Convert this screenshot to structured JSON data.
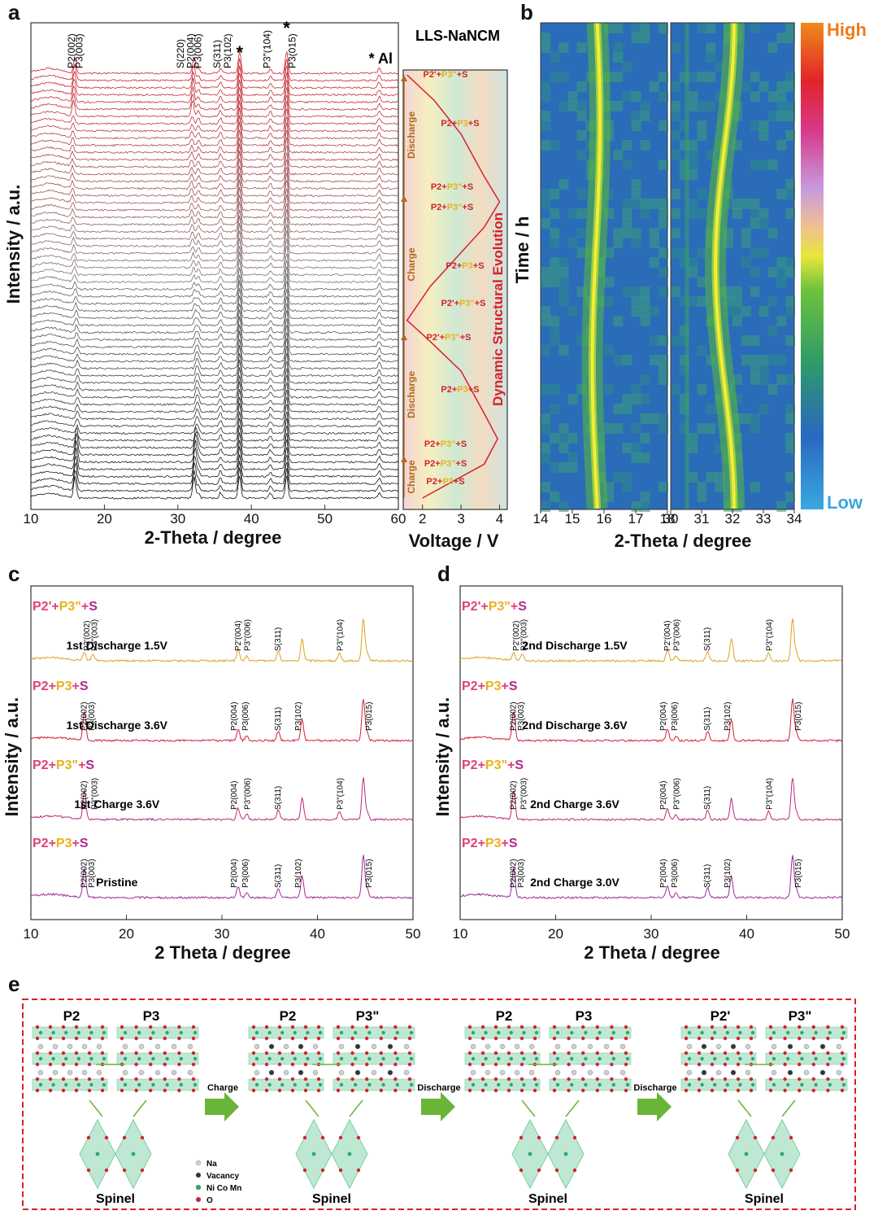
{
  "figure": {
    "panel_labels": {
      "a": "a",
      "b": "b",
      "c": "c",
      "d": "d",
      "e": "e"
    },
    "colors": {
      "pink": "#e0407a",
      "gold": "#e8b21a",
      "red": "#d8202a",
      "mag": "#b0288c",
      "gray": "#222222",
      "arrow_green": "#6ab43a",
      "legend_box": "#d8202a"
    }
  },
  "chart_data": [
    {
      "id": "a",
      "type": "line",
      "title": "LLS-NaNCM",
      "xlabel": "2-Theta / degree",
      "ylabel": "Intensity / a.u.",
      "xlim": [
        10,
        60
      ],
      "xticks": [
        "10",
        "20",
        "30",
        "40",
        "50",
        "60"
      ],
      "n_scans": 60,
      "peaks_deg": [
        16.0,
        32.2,
        32.8,
        35.8,
        38.4,
        42.6,
        44.8,
        57.4
      ],
      "peak_labels": [
        "P2(002)",
        "P3(003)",
        "S(220)",
        "P2(004)",
        "P3(006)",
        "S(311)",
        "P3(102)",
        "*",
        "P3\"(104)",
        "*",
        "P3(015)",
        "* Al"
      ],
      "side_panel": {
        "xlabel": "Voltage / V",
        "xticks": [
          "2",
          "3",
          "4"
        ],
        "xlim": [
          1.5,
          4.2
        ],
        "title": "Dynamic Structural Evolution",
        "stages": [
          "Charge",
          "Discharge",
          "Charge",
          "Discharge"
        ],
        "phases": [
          "P2+P3+S",
          "P2+P3\"+S",
          "P2+P3\"+S",
          "P2+P3+S",
          "P2'+P3\"+S",
          "P2'+P3\"+S",
          "P2+P3+S",
          "P2+P3\"+S",
          "P2+P3\"+S",
          "P2+P3+S",
          "P2'+P3\"+S"
        ],
        "voltage_profile": [
          [
            0,
            2.0
          ],
          [
            0.08,
            3.6
          ],
          [
            0.14,
            3.95
          ],
          [
            0.2,
            3.6
          ],
          [
            0.3,
            3.0
          ],
          [
            0.37,
            2.2
          ],
          [
            0.42,
            1.6
          ],
          [
            0.5,
            2.2
          ],
          [
            0.58,
            3.0
          ],
          [
            0.64,
            3.6
          ],
          [
            0.7,
            4.0
          ],
          [
            0.76,
            3.6
          ],
          [
            0.86,
            3.0
          ],
          [
            0.94,
            2.3
          ],
          [
            1.0,
            1.6
          ]
        ]
      }
    },
    {
      "id": "b",
      "type": "heatmap",
      "xlabel": "2-Theta / degree",
      "ylabel": "Time / h",
      "left_xlim": [
        14,
        18
      ],
      "left_xticks": [
        "14",
        "15",
        "16",
        "17",
        "18"
      ],
      "right_xlim": [
        30,
        34
      ],
      "right_xticks": [
        "30",
        "31",
        "32",
        "33",
        "34"
      ],
      "colorbar": {
        "high": "High",
        "low": "Low"
      }
    },
    {
      "id": "c",
      "type": "line",
      "xlabel": "2 Theta / degree",
      "ylabel": "Intensity / a.u.",
      "xlim": [
        10,
        50
      ],
      "xticks": [
        "10",
        "20",
        "30",
        "40",
        "50"
      ],
      "series": [
        {
          "name": "1st Discharge 1.5V",
          "phase": [
            "P2'",
            "P3\"",
            "S"
          ],
          "labels": [
            "P2'(002)",
            "P3\"(003)",
            "P2'(004)",
            "P3\"(006)",
            "S(311)",
            "P3\"(104)"
          ]
        },
        {
          "name": "1st Discharge 3.6V",
          "phase": [
            "P2",
            "P3",
            "S"
          ],
          "labels": [
            "P2(002)",
            "P3(003)",
            "P2(004)",
            "P3(006)",
            "S(311)",
            "P3(102)",
            "P3(015)"
          ]
        },
        {
          "name": "1st Charge 3.6V",
          "phase": [
            "P2",
            "P3\"",
            "S"
          ],
          "labels": [
            "P2(002)",
            "P3\"(003)",
            "P2(004)",
            "P3\"(006)",
            "S(311)",
            "P3\"(104)"
          ]
        },
        {
          "name": "Pristine",
          "phase": [
            "P2",
            "P3",
            "S"
          ],
          "labels": [
            "P2(002)",
            "P3(003)",
            "P2(004)",
            "P3(006)",
            "S(311)",
            "P3(102)",
            "P3(015)"
          ]
        }
      ]
    },
    {
      "id": "d",
      "type": "line",
      "xlabel": "2 Theta / degree",
      "ylabel": "Intensity / a.u.",
      "xlim": [
        10,
        50
      ],
      "xticks": [
        "10",
        "20",
        "30",
        "40",
        "50"
      ],
      "series": [
        {
          "name": "2nd Discharge 1.5V",
          "phase": [
            "P2'",
            "P3\"",
            "S"
          ],
          "labels": [
            "P2'(002)",
            "P3\"(003)",
            "P2'(004)",
            "P3\"(006)",
            "S(311)",
            "P3\"(104)"
          ]
        },
        {
          "name": "2nd Discharge 3.6V",
          "phase": [
            "P2",
            "P3",
            "S"
          ],
          "labels": [
            "P2(002)",
            "P3(003)",
            "P2(004)",
            "P3(006)",
            "S(311)",
            "P3(102)",
            "P3(015)"
          ]
        },
        {
          "name": "2nd Charge 3.6V",
          "phase": [
            "P2",
            "P3\"",
            "S"
          ],
          "labels": [
            "P2(002)",
            "P3\"(003)",
            "P2(004)",
            "P3\"(006)",
            "S(311)",
            "P3\"(104)"
          ]
        },
        {
          "name": "2nd Charge 3.0V",
          "phase": [
            "P2",
            "P3",
            "S"
          ],
          "labels": [
            "P2(002)",
            "P3(003)",
            "P2(004)",
            "P3(006)",
            "S(311)",
            "P3(102)",
            "P3(015)"
          ]
        }
      ]
    },
    {
      "id": "e",
      "type": "diagram",
      "states": [
        {
          "left": "P2",
          "right": "P3",
          "bottom": "Spinel"
        },
        {
          "left": "P2",
          "right": "P3\"",
          "bottom": "Spinel"
        },
        {
          "left": "P2",
          "right": "P3",
          "bottom": "Spinel"
        },
        {
          "left": "P2'",
          "right": "P3\"",
          "bottom": "Spinel"
        }
      ],
      "arrows": [
        "Charge",
        "Discharge",
        "Discharge"
      ],
      "legend": [
        "Na",
        "Vacancy",
        "Ni Co Mn",
        "O"
      ]
    }
  ]
}
